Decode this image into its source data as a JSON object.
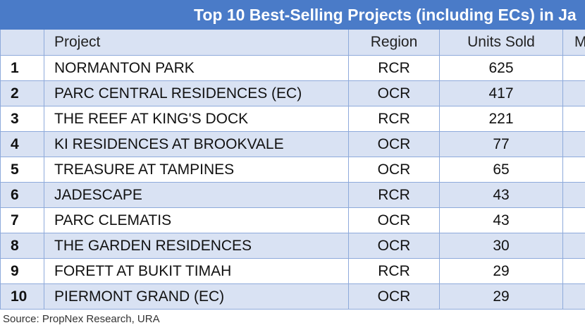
{
  "title": "Top 10 Best-Selling Projects (including ECs) in Ja",
  "headers": {
    "rank": "",
    "project": "Project",
    "region": "Region",
    "units": "Units Sold",
    "extra": "M"
  },
  "rows": [
    {
      "rank": "1",
      "project": "NORMANTON PARK",
      "region": "RCR",
      "units": "625"
    },
    {
      "rank": "2",
      "project": "PARC CENTRAL RESIDENCES (EC)",
      "region": "OCR",
      "units": "417"
    },
    {
      "rank": "3",
      "project": "THE REEF AT KING'S DOCK",
      "region": "RCR",
      "units": "221"
    },
    {
      "rank": "4",
      "project": "KI RESIDENCES AT BROOKVALE",
      "region": "OCR",
      "units": "77"
    },
    {
      "rank": "5",
      "project": "TREASURE AT TAMPINES",
      "region": "OCR",
      "units": "65"
    },
    {
      "rank": "6",
      "project": "JADESCAPE",
      "region": "RCR",
      "units": "43"
    },
    {
      "rank": "7",
      "project": "PARC CLEMATIS",
      "region": "OCR",
      "units": "43"
    },
    {
      "rank": "8",
      "project": "THE GARDEN RESIDENCES",
      "region": "OCR",
      "units": "30"
    },
    {
      "rank": "9",
      "project": "FORETT AT BUKIT TIMAH",
      "region": "RCR",
      "units": "29"
    },
    {
      "rank": "10",
      "project": "PIERMONT GRAND (EC)",
      "region": "OCR",
      "units": "29"
    }
  ],
  "source": "Source: PropNex Research, URA",
  "colors": {
    "title_bg": "#4a7bc8",
    "alt_row_bg": "#d9e2f3",
    "border": "#8eaadb"
  }
}
